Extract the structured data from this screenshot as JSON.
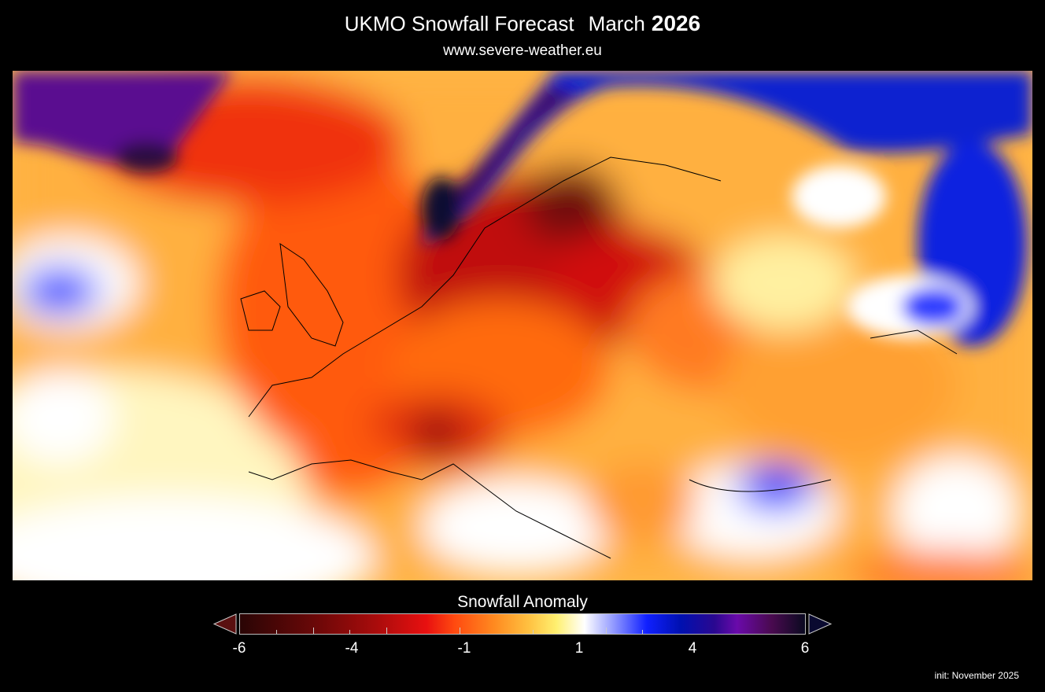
{
  "header": {
    "title": "UKMO Snowfall Forecast",
    "month": "March",
    "year": "2026",
    "subtitle": "www.severe-weather.eu"
  },
  "colorbar": {
    "title": "Snowfall Anomaly",
    "tick_labels": [
      "-6",
      "-4",
      "-1",
      "1",
      "4",
      "6"
    ],
    "extend": "both",
    "colors": {
      "low": "#2a0505",
      "mid_neg": "#e81010",
      "neutral": "#ffffff",
      "mid_pos": "#1020ff",
      "high": "#0a0a20"
    }
  },
  "footer": {
    "init": "init: November 2025"
  }
}
